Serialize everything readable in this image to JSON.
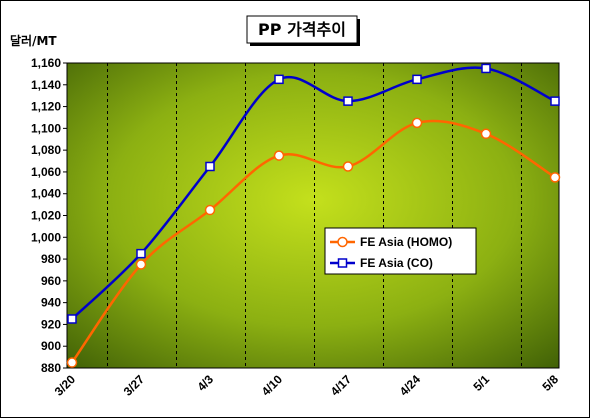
{
  "chart_data": {
    "type": "line",
    "title": "PP 가격추이",
    "ylabel": "달러/MT",
    "xlabel": "",
    "categories": [
      "3/20",
      "3/27",
      "4/3",
      "4/10",
      "4/17",
      "4/24",
      "5/1",
      "5/8"
    ],
    "ylim": [
      880,
      1160
    ],
    "ytick_step": 20,
    "grid": "vertical dashed",
    "legend_position": "center-right",
    "series": [
      {
        "name": "FE Asia (HOMO)",
        "values": [
          885,
          975,
          1025,
          1075,
          1065,
          1105,
          1095,
          1055
        ],
        "color": "#ff6600",
        "marker": "circle"
      },
      {
        "name": "FE Asia (CO)",
        "values": [
          925,
          985,
          1065,
          1145,
          1125,
          1145,
          1155,
          1125
        ],
        "color": "#0000cc",
        "marker": "square"
      }
    ]
  }
}
